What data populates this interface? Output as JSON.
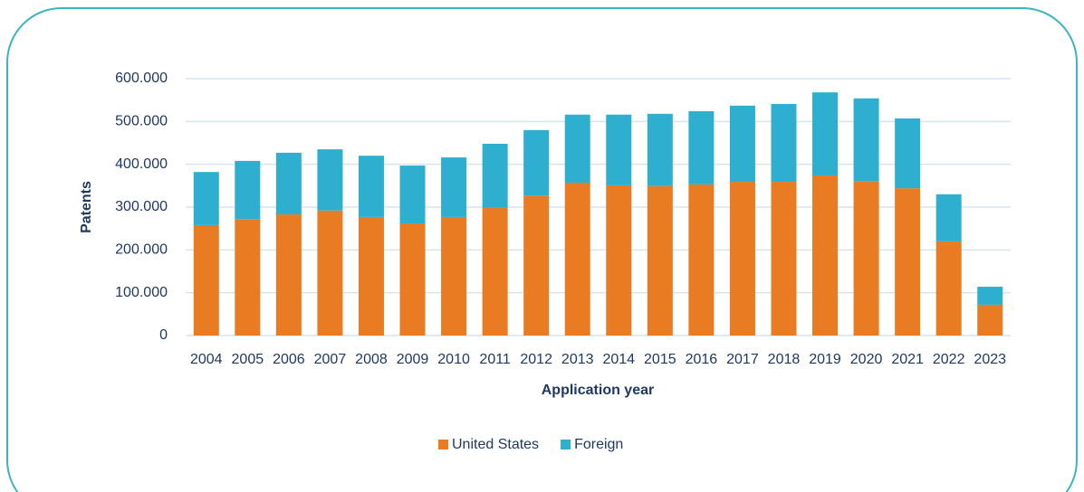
{
  "chart_data": {
    "type": "stacked_bar",
    "x_label": "Application year",
    "y_label": "Patents",
    "categories": [
      "2004",
      "2005",
      "2006",
      "2007",
      "2008",
      "2009",
      "2010",
      "2011",
      "2012",
      "2013",
      "2014",
      "2015",
      "2016",
      "2017",
      "2018",
      "2019",
      "2020",
      "2021",
      "2022",
      "2023"
    ],
    "series": [
      {
        "name": "United States",
        "color": "#e97b22",
        "values": [
          258000,
          272000,
          283000,
          292000,
          277000,
          262000,
          277000,
          298000,
          327000,
          357000,
          351000,
          349000,
          353000,
          359000,
          359000,
          374000,
          361000,
          344000,
          220000,
          72000
        ]
      },
      {
        "name": "Foreign",
        "color": "#2eafd0",
        "values": [
          124000,
          136000,
          144000,
          143000,
          143000,
          135000,
          139000,
          150000,
          153000,
          159000,
          165000,
          169000,
          171000,
          178000,
          182000,
          194000,
          193000,
          163000,
          110000,
          42000
        ]
      }
    ],
    "ylim": [
      0,
      600000
    ],
    "yticks": [
      0,
      {
        "value": 100000,
        "label": "100.000"
      },
      {
        "value": 200000,
        "label": "200.000"
      },
      {
        "value": 300000,
        "label": "300.000"
      },
      {
        "value": 400000,
        "label": "400.000"
      },
      {
        "value": 500000,
        "label": "500.000"
      },
      {
        "value": 600000,
        "label": "600.000"
      }
    ],
    "grid": true,
    "legend": "bottom"
  }
}
